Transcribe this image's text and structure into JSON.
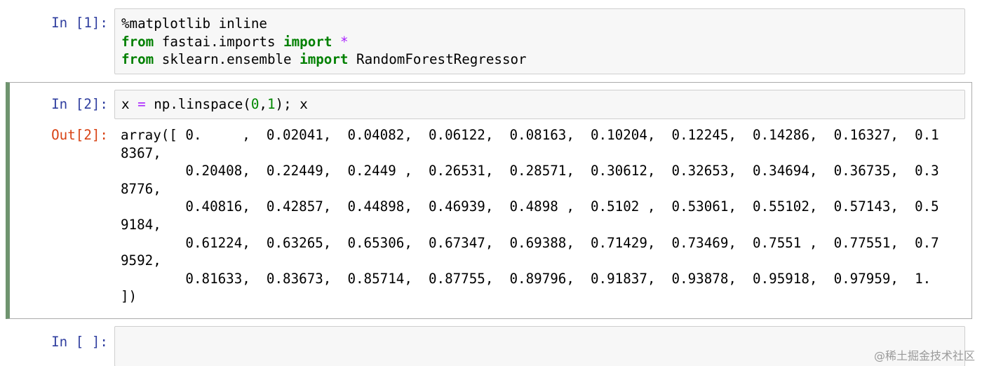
{
  "cells": [
    {
      "prompt": "In [1]:",
      "input": [
        [
          {
            "text": "%matplotlib inline",
            "style": "magic"
          }
        ],
        [
          {
            "text": "from",
            "style": "keyword"
          },
          {
            "text": " fastai.imports ",
            "style": "plain"
          },
          {
            "text": "import",
            "style": "keyword"
          },
          {
            "text": " ",
            "style": "plain"
          },
          {
            "text": "*",
            "style": "operator"
          }
        ],
        [
          {
            "text": "from",
            "style": "keyword"
          },
          {
            "text": " sklearn.ensemble ",
            "style": "plain"
          },
          {
            "text": "import",
            "style": "keyword"
          },
          {
            "text": " RandomForestRegressor",
            "style": "plain"
          }
        ]
      ]
    },
    {
      "prompt": "In [2]:",
      "selected": true,
      "input": [
        [
          {
            "text": "x ",
            "style": "plain"
          },
          {
            "text": "=",
            "style": "operator"
          },
          {
            "text": " np.linspace(",
            "style": "plain"
          },
          {
            "text": "0",
            "style": "number"
          },
          {
            "text": ",",
            "style": "plain"
          },
          {
            "text": "1",
            "style": "number"
          },
          {
            "text": "); x",
            "style": "plain"
          }
        ]
      ],
      "output_prompt": "Out[2]:",
      "output": [
        "array([ 0.     ,  0.02041,  0.04082,  0.06122,  0.08163,  0.10204,  0.12245,  0.14286,  0.16327,  0.1",
        "8367,",
        "        0.20408,  0.22449,  0.2449 ,  0.26531,  0.28571,  0.30612,  0.32653,  0.34694,  0.36735,  0.3",
        "8776,",
        "        0.40816,  0.42857,  0.44898,  0.46939,  0.4898 ,  0.5102 ,  0.53061,  0.55102,  0.57143,  0.5",
        "9184,",
        "        0.61224,  0.63265,  0.65306,  0.67347,  0.69388,  0.71429,  0.73469,  0.7551 ,  0.77551,  0.7",
        "9592,",
        "        0.81633,  0.83673,  0.85714,  0.87755,  0.89796,  0.91837,  0.93878,  0.95918,  0.97959,  1.",
        "])"
      ]
    },
    {
      "prompt": "In [ ]:",
      "input": []
    }
  ],
  "watermark": "@稀土掘金技术社区"
}
